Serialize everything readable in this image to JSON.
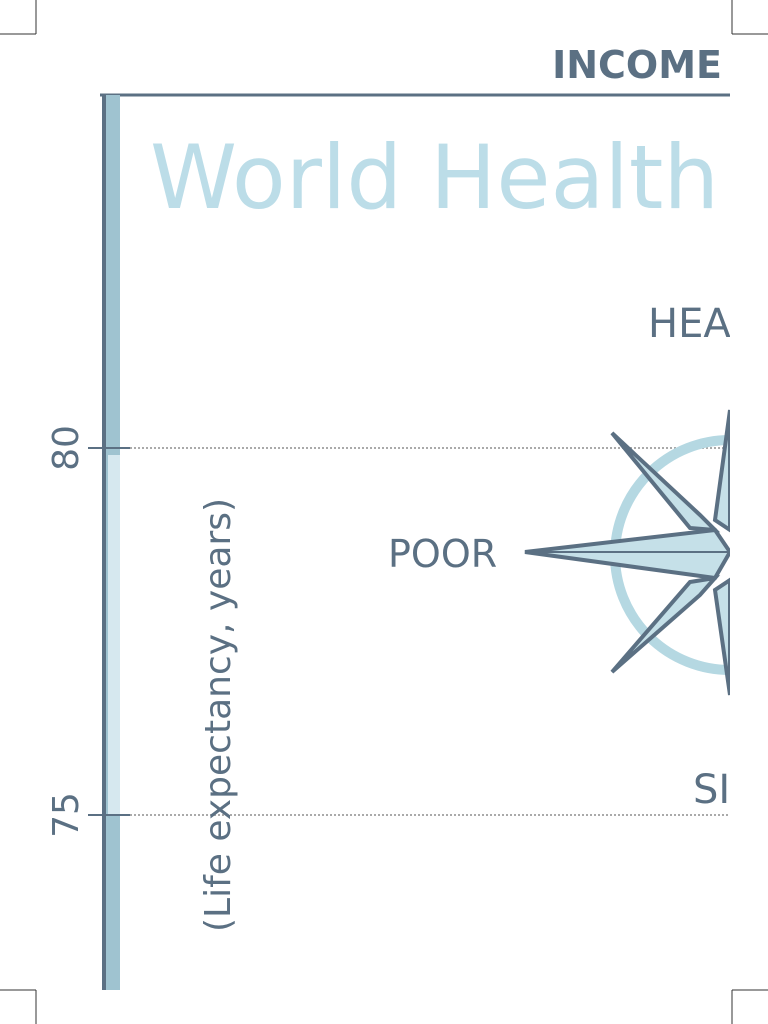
{
  "header": {
    "title": "INCOME"
  },
  "title": "World Health",
  "axis": {
    "label": "(Life expectancy, years)",
    "ticks": [
      80,
      75
    ]
  },
  "compass": {
    "north": "HEA",
    "west": "POOR",
    "south": "SI"
  }
}
